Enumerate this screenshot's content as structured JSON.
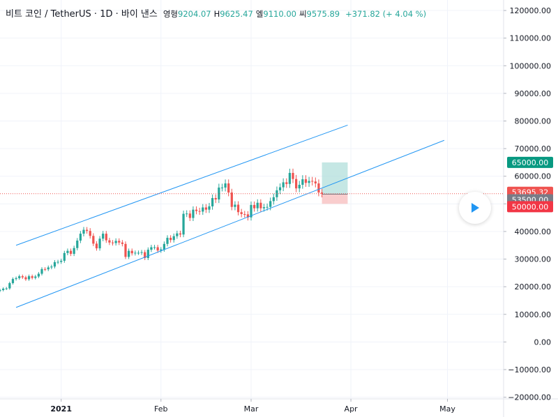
{
  "legend": {
    "symbol": "비트 코인 / TetherUS · 1D · 바이 낸스",
    "open_label": "영형",
    "open": "9204.07",
    "high_label": "H",
    "high": "9625.47",
    "low_label": "엘",
    "low": "9110.00",
    "close_label": "씨",
    "close": "9575.89",
    "change": "+371.82 (+ 4.04 %)"
  },
  "colors": {
    "up": "#26a69a",
    "down": "#ef5350",
    "channel": "#2196f3",
    "profit_zone": "#b2dfdb",
    "loss_zone": "#f8c4c4",
    "current_price_tag": "#ef5350",
    "entry_tag": "#787b86",
    "target_tag": "#089981",
    "stop_tag": "#f23645"
  },
  "price_tags": {
    "target": "65000.00",
    "current": "53695.32",
    "entry": "53500.00",
    "stop": "50000.00"
  },
  "controls": {
    "play_icon": "play-icon"
  },
  "chart_data": {
    "type": "candlestick",
    "title": "",
    "y_ticks": [
      120000,
      110000,
      100000,
      90000,
      80000,
      70000,
      60000,
      50000,
      40000,
      30000,
      20000,
      10000,
      0,
      -10000,
      -20000
    ],
    "y_tick_labels": [
      "120000.00",
      "110000.00",
      "100000.00",
      "90000.00",
      "80000.00",
      "70000.00",
      "60000.00",
      "50000.00",
      "40000.00",
      "30000.00",
      "20000.00",
      "10000.00",
      "0.00",
      "−10000.00",
      "−20000.00"
    ],
    "ylim": [
      -20600,
      123800
    ],
    "x_ticks": [
      "2021-01-01",
      "2021-02-01",
      "2021-03-01",
      "2021-04-01",
      "2021-05-01"
    ],
    "x_tick_labels": [
      "2021",
      "Feb",
      "Mar",
      "Apr",
      "May"
    ],
    "x_tick_bold": [
      true,
      false,
      false,
      false,
      false
    ],
    "xlim": [
      "2020-12-13",
      "2021-05-18"
    ],
    "close_series": [
      [
        "2020-12-13",
        18800
      ],
      [
        "2020-12-14",
        19300
      ],
      [
        "2020-12-15",
        19400
      ],
      [
        "2020-12-16",
        21300
      ],
      [
        "2020-12-17",
        22800
      ],
      [
        "2020-12-18",
        23100
      ],
      [
        "2020-12-19",
        23800
      ],
      [
        "2020-12-20",
        23400
      ],
      [
        "2020-12-21",
        22700
      ],
      [
        "2020-12-22",
        23800
      ],
      [
        "2020-12-23",
        23200
      ],
      [
        "2020-12-24",
        23700
      ],
      [
        "2020-12-25",
        24700
      ],
      [
        "2020-12-26",
        26400
      ],
      [
        "2020-12-27",
        26300
      ],
      [
        "2020-12-28",
        27000
      ],
      [
        "2020-12-29",
        27300
      ],
      [
        "2020-12-30",
        28900
      ],
      [
        "2020-12-31",
        29000
      ],
      [
        "2021-01-01",
        29400
      ],
      [
        "2021-01-02",
        32200
      ],
      [
        "2021-01-03",
        33000
      ],
      [
        "2021-01-04",
        31900
      ],
      [
        "2021-01-05",
        34000
      ],
      [
        "2021-01-06",
        36700
      ],
      [
        "2021-01-07",
        39200
      ],
      [
        "2021-01-08",
        40600
      ],
      [
        "2021-01-09",
        40200
      ],
      [
        "2021-01-10",
        38400
      ],
      [
        "2021-01-11",
        35600
      ],
      [
        "2021-01-12",
        33900
      ],
      [
        "2021-01-13",
        37400
      ],
      [
        "2021-01-14",
        39200
      ],
      [
        "2021-01-15",
        36800
      ],
      [
        "2021-01-16",
        36000
      ],
      [
        "2021-01-17",
        35800
      ],
      [
        "2021-01-18",
        36600
      ],
      [
        "2021-01-19",
        36000
      ],
      [
        "2021-01-20",
        35500
      ],
      [
        "2021-01-21",
        30800
      ],
      [
        "2021-01-22",
        33000
      ],
      [
        "2021-01-23",
        32100
      ],
      [
        "2021-01-24",
        32300
      ],
      [
        "2021-01-25",
        32300
      ],
      [
        "2021-01-26",
        32500
      ],
      [
        "2021-01-27",
        30400
      ],
      [
        "2021-01-28",
        33400
      ],
      [
        "2021-01-29",
        34300
      ],
      [
        "2021-01-30",
        34300
      ],
      [
        "2021-01-31",
        33100
      ],
      [
        "2021-02-01",
        33500
      ],
      [
        "2021-02-02",
        35500
      ],
      [
        "2021-02-03",
        37700
      ],
      [
        "2021-02-04",
        36900
      ],
      [
        "2021-02-05",
        38300
      ],
      [
        "2021-02-06",
        39300
      ],
      [
        "2021-02-07",
        38900
      ],
      [
        "2021-02-08",
        46400
      ],
      [
        "2021-02-09",
        46500
      ],
      [
        "2021-02-10",
        44900
      ],
      [
        "2021-02-11",
        47900
      ],
      [
        "2021-02-12",
        47400
      ],
      [
        "2021-02-13",
        47200
      ],
      [
        "2021-02-14",
        48700
      ],
      [
        "2021-02-15",
        47900
      ],
      [
        "2021-02-16",
        49100
      ],
      [
        "2021-02-17",
        52100
      ],
      [
        "2021-02-18",
        51600
      ],
      [
        "2021-02-19",
        55900
      ],
      [
        "2021-02-20",
        55900
      ],
      [
        "2021-02-21",
        57400
      ],
      [
        "2021-02-22",
        54100
      ],
      [
        "2021-02-23",
        48900
      ],
      [
        "2021-02-24",
        49700
      ],
      [
        "2021-02-25",
        47000
      ],
      [
        "2021-02-26",
        46300
      ],
      [
        "2021-02-27",
        46200
      ],
      [
        "2021-02-28",
        45100
      ],
      [
        "2021-03-01",
        49600
      ],
      [
        "2021-03-02",
        48400
      ],
      [
        "2021-03-03",
        50400
      ],
      [
        "2021-03-04",
        48400
      ],
      [
        "2021-03-05",
        48800
      ],
      [
        "2021-03-06",
        48900
      ],
      [
        "2021-03-07",
        51000
      ],
      [
        "2021-03-08",
        52400
      ],
      [
        "2021-03-09",
        54900
      ],
      [
        "2021-03-10",
        56000
      ],
      [
        "2021-03-11",
        57800
      ],
      [
        "2021-03-12",
        57200
      ],
      [
        "2021-03-13",
        61200
      ],
      [
        "2021-03-14",
        59000
      ],
      [
        "2021-03-15",
        55600
      ],
      [
        "2021-03-16",
        56900
      ],
      [
        "2021-03-17",
        58900
      ],
      [
        "2021-03-18",
        57600
      ],
      [
        "2021-03-19",
        58300
      ],
      [
        "2021-03-20",
        58100
      ],
      [
        "2021-03-21",
        57400
      ],
      [
        "2021-03-22",
        54100
      ],
      [
        "2021-03-23",
        53700
      ]
    ],
    "channel_upper": [
      [
        "2020-12-18",
        35000
      ],
      [
        "2021-03-31",
        78500
      ]
    ],
    "channel_lower": [
      [
        "2020-12-18",
        12500
      ],
      [
        "2021-04-30",
        73000
      ]
    ],
    "position": {
      "type": "long",
      "start": "2021-03-23",
      "end": "2021-03-31",
      "target": 65000,
      "entry": 53500,
      "stop": 50000
    },
    "current_price": 53695.32,
    "grid": true,
    "legend_position": "top-left"
  }
}
